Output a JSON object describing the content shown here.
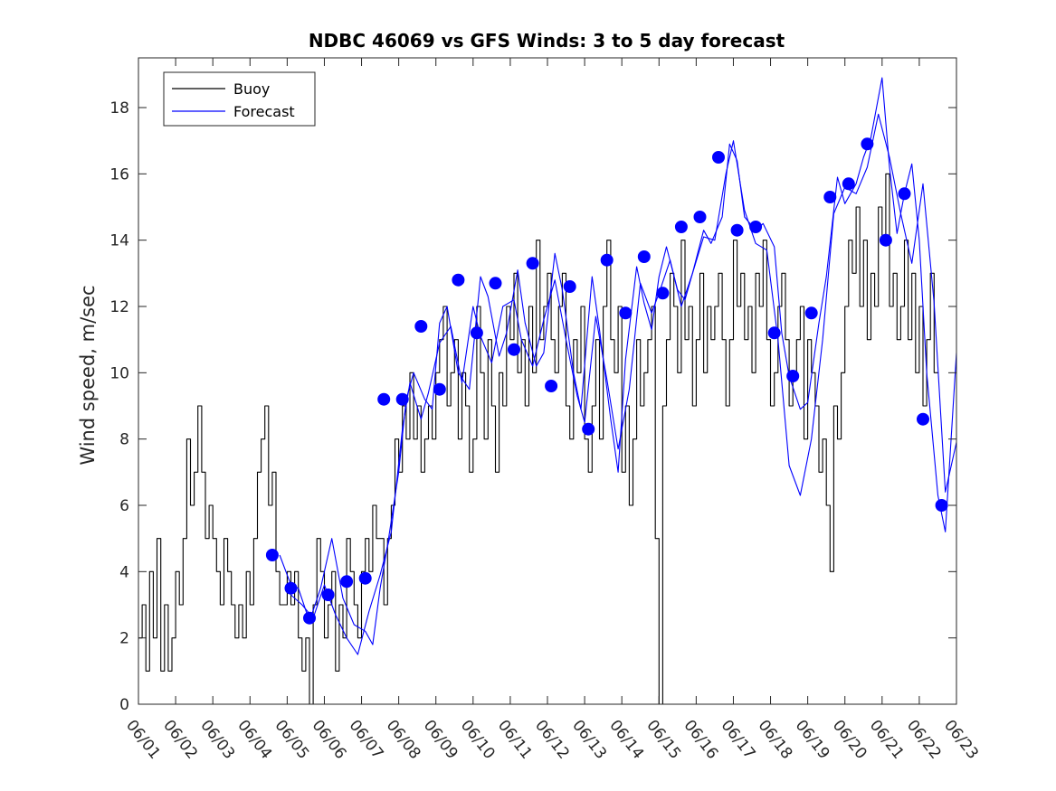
{
  "chart_data": {
    "type": "line",
    "title": "NDBC 46069 vs GFS Winds: 3 to 5 day forecast",
    "xlabel": "",
    "ylabel": "Wind speed, m/sec",
    "x_unit": "day of June",
    "xlim": [
      1,
      23
    ],
    "ylim": [
      0,
      19.5
    ],
    "yticks": [
      0,
      2,
      4,
      6,
      8,
      10,
      12,
      14,
      16,
      18
    ],
    "xtick_labels": [
      "06/01",
      "06/02",
      "06/03",
      "06/04",
      "06/05",
      "06/06",
      "06/07",
      "06/08",
      "06/09",
      "06/10",
      "06/11",
      "06/12",
      "06/13",
      "06/14",
      "06/15",
      "06/16",
      "06/17",
      "06/18",
      "06/19",
      "06/20",
      "06/21",
      "06/22",
      "06/23"
    ],
    "grid": false,
    "legend": {
      "location": "top-left",
      "entries": [
        {
          "label": "Buoy",
          "color": "#000000"
        },
        {
          "label": "Forecast",
          "color": "#0000ff"
        }
      ]
    },
    "series": [
      {
        "name": "Buoy",
        "color": "#000000",
        "style": "step",
        "x": [
          1.0,
          1.1,
          1.2,
          1.3,
          1.4,
          1.5,
          1.6,
          1.7,
          1.8,
          1.9,
          2.0,
          2.1,
          2.2,
          2.3,
          2.4,
          2.5,
          2.6,
          2.7,
          2.8,
          2.9,
          3.0,
          3.1,
          3.2,
          3.3,
          3.4,
          3.5,
          3.6,
          3.7,
          3.8,
          3.9,
          4.0,
          4.1,
          4.2,
          4.3,
          4.4,
          4.5,
          4.6,
          4.7,
          4.8,
          4.9,
          5.0,
          5.1,
          5.2,
          5.3,
          5.4,
          5.5,
          5.6,
          5.7,
          5.8,
          5.9,
          6.0,
          6.1,
          6.2,
          6.3,
          6.4,
          6.5,
          6.6,
          6.7,
          6.8,
          6.9,
          7.0,
          7.1,
          7.2,
          7.3,
          7.4,
          7.5,
          7.6,
          7.7,
          7.8,
          7.9,
          8.0,
          8.1,
          8.2,
          8.3,
          8.4,
          8.5,
          8.6,
          8.7,
          8.8,
          8.9,
          9.0,
          9.1,
          9.2,
          9.3,
          9.4,
          9.5,
          9.6,
          9.7,
          9.8,
          9.9,
          10.0,
          10.1,
          10.2,
          10.3,
          10.4,
          10.5,
          10.6,
          10.7,
          10.8,
          10.9,
          11.0,
          11.1,
          11.2,
          11.3,
          11.4,
          11.5,
          11.6,
          11.7,
          11.8,
          11.9,
          12.0,
          12.1,
          12.2,
          12.3,
          12.4,
          12.5,
          12.6,
          12.7,
          12.8,
          12.9,
          13.0,
          13.1,
          13.2,
          13.3,
          13.4,
          13.5,
          13.6,
          13.7,
          13.8,
          13.9,
          14.0,
          14.1,
          14.2,
          14.3,
          14.4,
          14.5,
          14.6,
          14.7,
          14.8,
          14.9,
          15.0,
          15.1,
          15.2,
          15.3,
          15.4,
          15.5,
          15.6,
          15.7,
          15.8,
          15.9,
          16.0,
          16.1,
          16.2,
          16.3,
          16.4,
          16.5,
          16.6,
          16.7,
          16.8,
          16.9,
          17.0,
          17.1,
          17.2,
          17.3,
          17.4,
          17.5,
          17.6,
          17.7,
          17.8,
          17.9,
          18.0,
          18.1,
          18.2,
          18.3,
          18.4,
          18.5,
          18.6,
          18.7,
          18.8,
          18.9,
          19.0,
          19.1,
          19.2,
          19.3,
          19.4,
          19.5,
          19.6,
          19.7,
          19.8,
          19.9,
          20.0,
          20.1,
          20.2,
          20.3,
          20.4,
          20.5,
          20.6,
          20.7,
          20.8,
          20.9,
          21.0,
          21.1,
          21.2,
          21.3,
          21.4,
          21.5,
          21.6,
          21.7,
          21.8,
          21.9,
          22.0,
          22.1,
          22.2,
          22.3,
          22.4
        ],
        "y": [
          2,
          3,
          1,
          4,
          2,
          5,
          1,
          3,
          1,
          2,
          4,
          3,
          5,
          8,
          6,
          7,
          9,
          7,
          5,
          6,
          5,
          4,
          3,
          5,
          4,
          3,
          2,
          3,
          2,
          4,
          3,
          5,
          7,
          8,
          9,
          6,
          7,
          4,
          3,
          3,
          4,
          3,
          4,
          2,
          1,
          2,
          0,
          3,
          5,
          4,
          2,
          3,
          4,
          1,
          3,
          2,
          5,
          4,
          3,
          2,
          4,
          5,
          4,
          6,
          5,
          5,
          3,
          5,
          6,
          8,
          7,
          9,
          8,
          10,
          8,
          9,
          7,
          8,
          9,
          8,
          10,
          11,
          12,
          9,
          10,
          11,
          8,
          10,
          9,
          7,
          8,
          12,
          10,
          8,
          11,
          9,
          7,
          10,
          9,
          12,
          11,
          13,
          10,
          11,
          9,
          12,
          10,
          14,
          11,
          12,
          13,
          11,
          10,
          12,
          13,
          9,
          8,
          11,
          10,
          12,
          8,
          7,
          9,
          11,
          8,
          12,
          14,
          11,
          10,
          12,
          7,
          9,
          6,
          8,
          11,
          9,
          10,
          11,
          12,
          5,
          0,
          9,
          11,
          13,
          12,
          10,
          14,
          11,
          12,
          9,
          11,
          13,
          10,
          12,
          11,
          12,
          13,
          11,
          9,
          11,
          14,
          12,
          13,
          11,
          12,
          10,
          13,
          12,
          14,
          11,
          9,
          10,
          12,
          13,
          11,
          9,
          10,
          11,
          12,
          8,
          11,
          10,
          9,
          7,
          8,
          6,
          4,
          9,
          8,
          10,
          12,
          14,
          13,
          15,
          12,
          14,
          11,
          13,
          12,
          15,
          14,
          16,
          12,
          13,
          11,
          12,
          14,
          11,
          13,
          10,
          12,
          9,
          11,
          13,
          10
        ]
      },
      {
        "name": "Forecast",
        "color": "#0000ff",
        "style": "line",
        "x": [
          4.8,
          5.1,
          5.3,
          5.6,
          5.9,
          6.2,
          6.5,
          6.8,
          7.1,
          7.3,
          7.5,
          7.7,
          8.0,
          8.2,
          8.4,
          8.7,
          8.9,
          9.1,
          9.3,
          9.6,
          9.9,
          10.2,
          10.4,
          10.7,
          10.9,
          11.2,
          11.4,
          11.7,
          11.9,
          12.2,
          12.4,
          12.7,
          12.9,
          13.2,
          13.4,
          13.7,
          13.9,
          14.1,
          14.4,
          14.6,
          14.8,
          15.0,
          15.2,
          15.5,
          15.7,
          15.9,
          16.2,
          16.4,
          16.7,
          16.9,
          17.1,
          17.3,
          17.6,
          17.8,
          18.1,
          18.3,
          18.5,
          18.8,
          19.0,
          19.3,
          19.5,
          19.8,
          20.0,
          20.3,
          20.5,
          20.7,
          21.0,
          21.2,
          21.4,
          21.6,
          21.8,
          22.0,
          22.2,
          22.5,
          22.7,
          23.0
        ],
        "y": [
          4.5,
          3.6,
          3.5,
          2.5,
          3.5,
          5.0,
          3.2,
          2.4,
          2.2,
          1.8,
          3.5,
          4.8,
          7.0,
          9.2,
          10.0,
          9.2,
          8.9,
          11.5,
          12.0,
          10.0,
          9.5,
          12.9,
          12.3,
          10.5,
          11.2,
          13.1,
          11.5,
          10.2,
          10.6,
          13.6,
          12.5,
          10.0,
          8.9,
          12.9,
          11.3,
          8.6,
          7.0,
          10.4,
          13.2,
          12.1,
          11.3,
          12.9,
          13.8,
          12.5,
          12.2,
          13.0,
          14.3,
          13.9,
          14.7,
          16.9,
          16.4,
          14.7,
          14.3,
          14.5,
          13.8,
          11.2,
          9.9,
          8.9,
          9.1,
          11.5,
          12.9,
          15.9,
          15.1,
          15.7,
          16.5,
          17.1,
          18.9,
          16.2,
          14.2,
          15.4,
          16.3,
          14.0,
          10.0,
          6.3,
          5.2,
          10.6
        ]
      },
      {
        "name": "Forecast",
        "color": "#0000ff",
        "style": "line",
        "x": [
          5.1,
          5.4,
          5.7,
          6.0,
          6.3,
          6.6,
          6.9,
          7.2,
          7.5,
          7.8,
          8.1,
          8.3,
          8.6,
          8.8,
          9.1,
          9.4,
          9.7,
          10.0,
          10.2,
          10.5,
          10.8,
          11.1,
          11.3,
          11.6,
          11.9,
          12.2,
          12.5,
          12.8,
          13.0,
          13.3,
          13.6,
          13.9,
          14.2,
          14.5,
          14.8,
          15.0,
          15.3,
          15.6,
          15.9,
          16.2,
          16.5,
          16.8,
          17.0,
          17.3,
          17.6,
          17.9,
          18.2,
          18.5,
          18.8,
          19.1,
          19.4,
          19.7,
          20.0,
          20.3,
          20.6,
          20.9,
          21.2,
          21.5,
          21.8,
          22.1,
          22.4,
          22.7,
          23.0
        ],
        "y": [
          3.3,
          3.0,
          2.6,
          3.6,
          2.7,
          2.0,
          1.5,
          2.8,
          3.9,
          5.2,
          8.3,
          9.7,
          8.6,
          9.4,
          10.9,
          11.4,
          9.7,
          12.0,
          11.1,
          10.3,
          12.0,
          12.2,
          11.0,
          10.2,
          11.6,
          12.8,
          11.0,
          9.3,
          8.5,
          11.7,
          9.8,
          7.7,
          9.5,
          12.7,
          11.8,
          12.4,
          13.4,
          12.0,
          13.0,
          14.1,
          14.0,
          16.0,
          17.0,
          14.9,
          13.9,
          13.7,
          11.0,
          7.2,
          6.3,
          8.0,
          11.0,
          14.8,
          15.6,
          15.4,
          16.2,
          17.8,
          16.5,
          14.8,
          13.3,
          15.7,
          12.1,
          6.4,
          7.9
        ]
      }
    ],
    "markers": {
      "name": "Forecast",
      "color": "#0000ff",
      "shape": "circle",
      "x": [
        4.6,
        5.1,
        5.6,
        6.1,
        6.6,
        7.1,
        7.6,
        8.1,
        8.6,
        9.1,
        9.6,
        10.1,
        10.6,
        11.1,
        11.6,
        12.1,
        12.6,
        13.1,
        13.6,
        14.1,
        14.6,
        15.1,
        15.6,
        16.1,
        16.6,
        17.1,
        17.6,
        18.1,
        18.6,
        19.1,
        19.6,
        20.1,
        20.6,
        21.1,
        21.6,
        22.1,
        22.6
      ],
      "y": [
        4.5,
        3.5,
        2.6,
        3.3,
        3.7,
        3.8,
        9.2,
        9.2,
        11.4,
        9.5,
        12.8,
        11.2,
        12.7,
        10.7,
        13.3,
        9.6,
        12.6,
        8.3,
        13.4,
        11.8,
        13.5,
        12.4,
        14.4,
        14.7,
        16.5,
        14.3,
        14.4,
        11.2,
        9.9,
        11.8,
        15.3,
        15.7,
        16.9,
        14.0,
        15.4,
        8.6,
        6.0
      ]
    }
  }
}
